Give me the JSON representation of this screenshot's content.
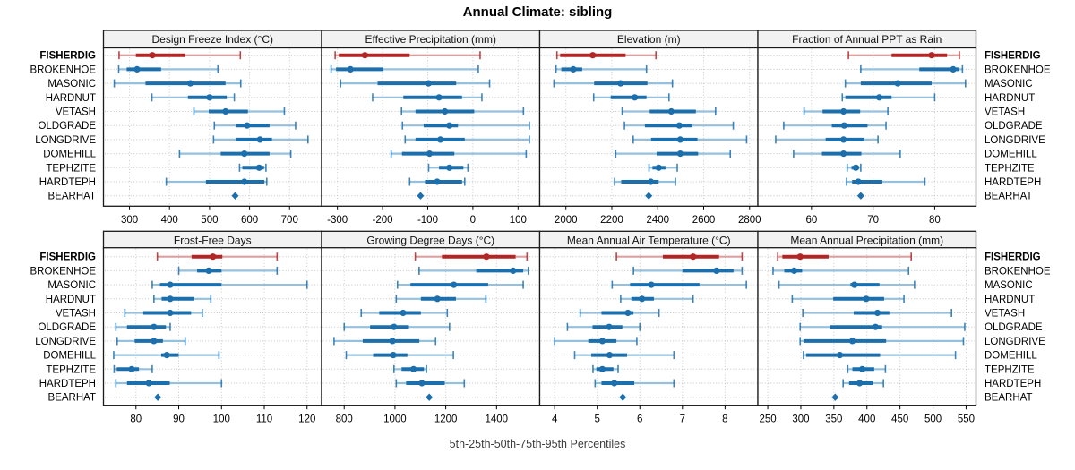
{
  "title": "Annual Climate: sibling",
  "footer": "5th-25th-50th-75th-95th Percentiles",
  "percentile_levels": [
    5,
    25,
    50,
    75,
    95
  ],
  "sites": [
    "FISHERDIG",
    "BROKENHOE",
    "MASONIC",
    "HARDNUT",
    "VETASH",
    "OLDGRADE",
    "LONGDRIVE",
    "DOMEHILL",
    "TEPHZITE",
    "HARDTEPH",
    "BEARHAT"
  ],
  "highlight_site": "FISHERDIG",
  "colors": {
    "blue_dark": "#1c6fad",
    "blue_light": "#96c1de",
    "red_dark": "#b22626",
    "red_light": "#dba0a0",
    "grid": "#c6c6c6",
    "panel_border": "#1a1a1a",
    "header_bg": "#f2f2f2",
    "background": "#ffffff"
  },
  "chart_data": [
    {
      "type": "dot-whisker",
      "title": "Design Freeze Index (°C)",
      "row": 0,
      "col": 0,
      "xlim": [
        235,
        780
      ],
      "ticks": [
        300,
        400,
        500,
        600,
        700
      ],
      "percentiles": {
        "FISHERDIG": [
          274,
          316,
          357,
          439,
          577
        ],
        "BROKENHOE": [
          273,
          293,
          319,
          379,
          521
        ],
        "MASONIC": [
          262,
          340,
          452,
          540,
          578
        ],
        "HARDNUT": [
          356,
          446,
          500,
          543,
          562
        ],
        "VETASH": [
          461,
          498,
          540,
          596,
          687
        ],
        "OLDGRADE": [
          512,
          566,
          594,
          650,
          715
        ],
        "LONGDRIVE": [
          510,
          566,
          626,
          656,
          746
        ],
        "DOMEHILL": [
          425,
          528,
          587,
          650,
          703
        ],
        "TEPHZITE": [
          575,
          582,
          624,
          636,
          641
        ],
        "HARDTEPH": [
          392,
          491,
          587,
          637,
          643
        ],
        "BEARHAT": [
          564,
          564,
          564,
          564,
          564
        ]
      }
    },
    {
      "type": "dot-whisker",
      "title": "Effective Precipitation (mm)",
      "row": 0,
      "col": 1,
      "xlim": [
        -335,
        148
      ],
      "ticks": [
        -300,
        -200,
        -100,
        0,
        100
      ],
      "percentiles": {
        "FISHERDIG": [
          -305,
          -297,
          -239,
          -140,
          16
        ],
        "BROKENHOE": [
          -314,
          -303,
          -271,
          -198,
          12
        ],
        "MASONIC": [
          -293,
          -211,
          -98,
          -37,
          37
        ],
        "HARDNUT": [
          -222,
          -154,
          -75,
          -24,
          20
        ],
        "VETASH": [
          -158,
          -127,
          -62,
          3,
          112
        ],
        "OLDGRADE": [
          -156,
          -109,
          -52,
          -33,
          125
        ],
        "LONGDRIVE": [
          -150,
          -127,
          -72,
          -18,
          125
        ],
        "DOMEHILL": [
          -181,
          -157,
          -96,
          -41,
          118
        ],
        "TEPHZITE": [
          -98,
          -75,
          -52,
          -21,
          -11
        ],
        "HARDTEPH": [
          -140,
          -106,
          -79,
          -24,
          -18
        ],
        "BEARHAT": [
          -116,
          -116,
          -116,
          -116,
          -116
        ]
      }
    },
    {
      "type": "dot-whisker",
      "title": "Elevation (m)",
      "row": 0,
      "col": 2,
      "xlim": [
        1886,
        2836
      ],
      "ticks": [
        2000,
        2200,
        2400,
        2600,
        2800
      ],
      "percentiles": {
        "FISHERDIG": [
          1961,
          1975,
          2117,
          2260,
          2392
        ],
        "BROKENHOE": [
          1957,
          1980,
          2032,
          2071,
          2351
        ],
        "MASONIC": [
          1948,
          2123,
          2238,
          2355,
          2464
        ],
        "HARDNUT": [
          2121,
          2195,
          2300,
          2351,
          2449
        ],
        "VETASH": [
          2245,
          2365,
          2459,
          2566,
          2652
        ],
        "OLDGRADE": [
          2255,
          2344,
          2494,
          2550,
          2729
        ],
        "LONGDRIVE": [
          2293,
          2371,
          2498,
          2573,
          2787
        ],
        "DOMEHILL": [
          2217,
          2395,
          2498,
          2576,
          2716
        ],
        "TEPHZITE": [
          2362,
          2377,
          2404,
          2434,
          2485
        ],
        "HARDTEPH": [
          2212,
          2241,
          2370,
          2404,
          2477
        ],
        "BEARHAT": [
          2361,
          2361,
          2361,
          2361,
          2361
        ]
      }
    },
    {
      "type": "dot-whisker",
      "title": "Fraction of Annual PPT as Rain",
      "row": 0,
      "col": 3,
      "xlim": [
        51.3,
        86.7
      ],
      "ticks": [
        60,
        70,
        80
      ],
      "percentiles": {
        "FISHERDIG": [
          66,
          73,
          79.5,
          82,
          84
        ],
        "BROKENHOE": [
          68,
          77.5,
          83,
          84,
          84.5
        ],
        "MASONIC": [
          65.5,
          68,
          74,
          79.5,
          85
        ],
        "HARDNUT": [
          65,
          65.5,
          71,
          73,
          80
        ],
        "VETASH": [
          58.8,
          61.8,
          65.2,
          67.9,
          72.4
        ],
        "OLDGRADE": [
          55.5,
          63.3,
          65.3,
          69.1,
          72.1
        ],
        "LONGDRIVE": [
          54.2,
          62.3,
          65.2,
          68.6,
          70.8
        ],
        "DOMEHILL": [
          57.1,
          61.7,
          65.2,
          68.1,
          74.4
        ],
        "TEPHZITE": [
          65.8,
          66.5,
          67.2,
          67.7,
          68
        ],
        "HARDTEPH": [
          65.7,
          66.6,
          67.6,
          71.5,
          78.4
        ],
        "BEARHAT": [
          68,
          68,
          68,
          68,
          68
        ]
      }
    },
    {
      "type": "dot-whisker",
      "title": "Frost-Free Days",
      "row": 1,
      "col": 0,
      "xlim": [
        72.4,
        123.4
      ],
      "ticks": [
        80,
        90,
        100,
        110,
        120
      ],
      "percentiles": {
        "FISHERDIG": [
          85,
          93,
          98,
          100.2,
          113
        ],
        "BROKENHOE": [
          90,
          94.3,
          97,
          100,
          113
        ],
        "MASONIC": [
          83.8,
          85.6,
          88,
          100,
          120
        ],
        "HARDNUT": [
          84.2,
          86,
          88,
          93.6,
          97.5
        ],
        "VETASH": [
          77.4,
          81.7,
          88,
          92.9,
          95.5
        ],
        "OLDGRADE": [
          75.3,
          77.9,
          84.2,
          87,
          88
        ],
        "LONGDRIVE": [
          75.6,
          79.7,
          84.2,
          86.3,
          91.5
        ],
        "DOMEHILL": [
          74.8,
          85.9,
          87.2,
          90,
          99.4
        ],
        "TEPHZITE": [
          74.9,
          75.5,
          79,
          80.7,
          83.8
        ],
        "HARDTEPH": [
          75.3,
          77.9,
          83,
          87.9,
          100
        ],
        "BEARHAT": [
          85.1,
          85.1,
          85.1,
          85.1,
          85.1
        ]
      }
    },
    {
      "type": "dot-whisker",
      "title": "Growing Degree Days (°C)",
      "row": 1,
      "col": 1,
      "xlim": [
        711,
        1570
      ],
      "ticks": [
        800,
        1000,
        1200,
        1400
      ],
      "percentiles": {
        "FISHERDIG": [
          1080,
          1185,
          1360,
          1475,
          1520
        ],
        "BROKENHOE": [
          1095,
          1320,
          1465,
          1505,
          1525
        ],
        "MASONIC": [
          1010,
          1061,
          1232,
          1367,
          1505
        ],
        "HARDNUT": [
          1005,
          1102,
          1167,
          1240,
          1358
        ],
        "VETASH": [
          867,
          938,
          1032,
          1102,
          1206
        ],
        "OLDGRADE": [
          800,
          902,
          996,
          1055,
          1215
        ],
        "LONGDRIVE": [
          760,
          873,
          990,
          1096,
          1160
        ],
        "DOMEHILL": [
          808,
          914,
          993,
          1049,
          1230
        ],
        "TEPHZITE": [
          996,
          1026,
          1073,
          1114,
          1124
        ],
        "HARDTEPH": [
          1005,
          1044,
          1106,
          1196,
          1273
        ],
        "BEARHAT": [
          1135,
          1135,
          1135,
          1135,
          1135
        ]
      }
    },
    {
      "type": "dot-whisker",
      "title": "Mean Annual Air Temperature (°C)",
      "row": 1,
      "col": 2,
      "xlim": [
        3.65,
        8.77
      ],
      "ticks": [
        4,
        5,
        6,
        7,
        8
      ],
      "percentiles": {
        "FISHERDIG": [
          5.45,
          6.54,
          7.25,
          7.86,
          8.4
        ],
        "BROKENHOE": [
          5.85,
          7.0,
          7.8,
          8.2,
          8.4
        ],
        "MASONIC": [
          5.35,
          5.77,
          6.27,
          7.4,
          8.5
        ],
        "HARDNUT": [
          5.55,
          5.8,
          6.05,
          6.33,
          7.25
        ],
        "VETASH": [
          4.6,
          5.1,
          5.72,
          5.85,
          6.45
        ],
        "OLDGRADE": [
          4.3,
          4.89,
          5.28,
          5.59,
          6.0
        ],
        "LONGDRIVE": [
          4.0,
          4.79,
          5.12,
          5.45,
          5.93
        ],
        "DOMEHILL": [
          4.47,
          4.86,
          5.29,
          5.7,
          6.8
        ],
        "TEPHZITE": [
          4.9,
          4.98,
          5.12,
          5.38,
          5.49
        ],
        "HARDTEPH": [
          4.95,
          5.1,
          5.4,
          5.87,
          6.8
        ],
        "BEARHAT": [
          5.6,
          5.6,
          5.6,
          5.6,
          5.6
        ]
      }
    },
    {
      "type": "dot-whisker",
      "title": "Mean Annual Precipitation (mm)",
      "row": 1,
      "col": 3,
      "xlim": [
        235,
        565
      ],
      "ticks": [
        250,
        300,
        350,
        400,
        450,
        500,
        550
      ],
      "percentiles": {
        "FISHERDIG": [
          265,
          272,
          299,
          342,
          467
        ],
        "BROKENHOE": [
          258,
          275,
          290,
          302,
          463
        ],
        "MASONIC": [
          267,
          375,
          381,
          419,
          472
        ],
        "HARDNUT": [
          287,
          349,
          399,
          426,
          456
        ],
        "VETASH": [
          303,
          380,
          416,
          434,
          528
        ],
        "OLDGRADE": [
          299,
          344,
          413,
          423,
          548
        ],
        "LONGDRIVE": [
          299,
          304,
          378,
          429,
          546
        ],
        "DOMEHILL": [
          304,
          308,
          359,
          420,
          534
        ],
        "TEPHZITE": [
          371,
          378,
          393,
          411,
          428
        ],
        "HARDTEPH": [
          364,
          373,
          389,
          409,
          425
        ],
        "BEARHAT": [
          352,
          352,
          352,
          352,
          352
        ]
      }
    }
  ]
}
